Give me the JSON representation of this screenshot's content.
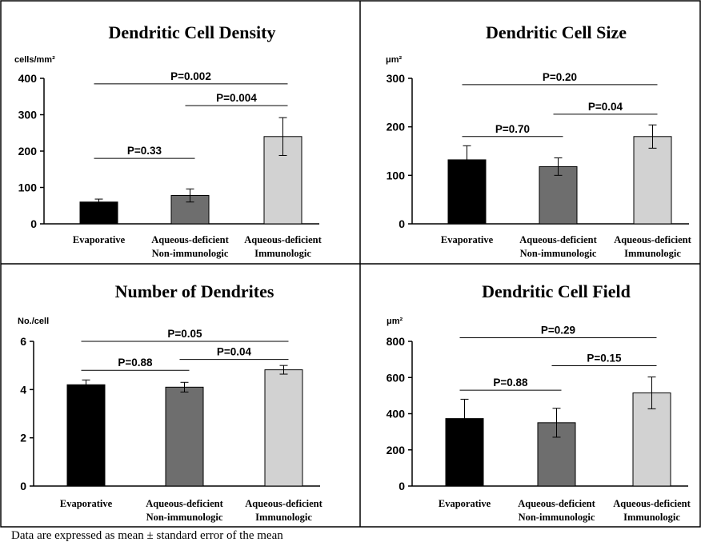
{
  "footnote": "Data are expressed as mean ± standard error of the mean",
  "colors": {
    "bar_series": [
      "#000000",
      "#6e6e6e",
      "#d2d2d2"
    ],
    "axis": "#000000",
    "border": "#000000"
  },
  "chart_data": [
    {
      "type": "bar",
      "title": "Dendritic Cell Density",
      "ylabel": "cells/mm²",
      "ylim": [
        0,
        400
      ],
      "yticks": [
        "0",
        "100",
        "200",
        "300",
        "400"
      ],
      "categories": [
        [
          "Evaporative"
        ],
        [
          "Aqueous-deficient",
          "Non-immunologic"
        ],
        [
          "Aqueous-deficient",
          "Immunologic"
        ]
      ],
      "values": [
        60,
        78,
        240
      ],
      "errors": [
        8,
        18,
        52
      ],
      "comparisons": [
        {
          "label": "P=0.33",
          "from": 0,
          "to": 1,
          "y": 180
        },
        {
          "label": "P=0.004",
          "from": 1,
          "to": 2,
          "y": 325
        },
        {
          "label": "P=0.002",
          "from": 0,
          "to": 2,
          "y": 385
        }
      ],
      "grid": false
    },
    {
      "type": "bar",
      "title": "Dendritic Cell Size",
      "ylabel": "μm²",
      "ylim": [
        0,
        300
      ],
      "yticks": [
        "0",
        "100",
        "200",
        "300"
      ],
      "categories": [
        [
          "Evaporative"
        ],
        [
          "Aqueous-deficient",
          "Non-immunologic"
        ],
        [
          "Aqueous-deficient",
          "Immunologic"
        ]
      ],
      "values": [
        132,
        118,
        180
      ],
      "errors": [
        29,
        18,
        24
      ],
      "comparisons": [
        {
          "label": "P=0.70",
          "from": 0,
          "to": 1,
          "y": 180
        },
        {
          "label": "P=0.04",
          "from": 1,
          "to": 2,
          "y": 226
        },
        {
          "label": "P=0.20",
          "from": 0,
          "to": 2,
          "y": 287
        }
      ],
      "grid": false
    },
    {
      "type": "bar",
      "title": "Number of Dendrites",
      "ylabel": "No./cell",
      "ylim": [
        0,
        6
      ],
      "yticks": [
        "0",
        "2",
        "4",
        "6"
      ],
      "categories": [
        [
          "Evaporative"
        ],
        [
          "Aqueous-deficient",
          "Non-immunologic"
        ],
        [
          "Aqueous-deficient",
          "Immunologic"
        ]
      ],
      "values": [
        4.2,
        4.1,
        4.82
      ],
      "errors": [
        0.2,
        0.2,
        0.18
      ],
      "comparisons": [
        {
          "label": "P=0.88",
          "from": 0,
          "to": 1,
          "y": 4.8
        },
        {
          "label": "P=0.04",
          "from": 1,
          "to": 2,
          "y": 5.25
        },
        {
          "label": "P=0.05",
          "from": 0,
          "to": 2,
          "y": 6.0
        }
      ],
      "grid": false
    },
    {
      "type": "bar",
      "title": "Dendritic Cell Field",
      "ylabel": "μm²",
      "ylim": [
        0,
        800
      ],
      "yticks": [
        "0",
        "200",
        "400",
        "600",
        "800"
      ],
      "categories": [
        [
          "Evaporative"
        ],
        [
          "Aqueous-deficient",
          "Non-immunologic"
        ],
        [
          "Aqueous-deficient",
          "Immunologic"
        ]
      ],
      "values": [
        373,
        350,
        515
      ],
      "errors": [
        107,
        80,
        88
      ],
      "comparisons": [
        {
          "label": "P=0.88",
          "from": 0,
          "to": 1,
          "y": 530
        },
        {
          "label": "P=0.15",
          "from": 1,
          "to": 2,
          "y": 665
        },
        {
          "label": "P=0.29",
          "from": 0,
          "to": 2,
          "y": 820
        }
      ],
      "grid": false
    }
  ]
}
